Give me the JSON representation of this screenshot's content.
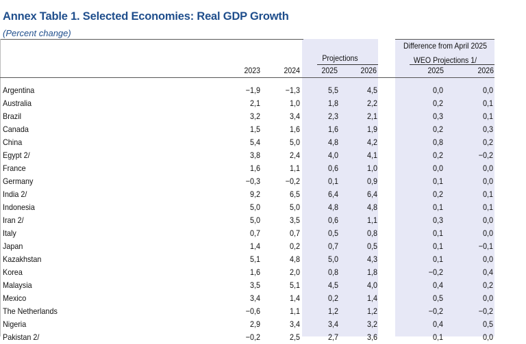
{
  "title": "Annex Table 1. Selected Economies: Real GDP Growth",
  "subtitle": "(Percent change)",
  "header": {
    "projections_label": "Projections",
    "difference_line1": "Difference from April 2025",
    "difference_line2": "WEO Projections 1/",
    "years": [
      "2023",
      "2024",
      "2025",
      "2026",
      "2025",
      "2026"
    ]
  },
  "rows": [
    {
      "name": "Argentina",
      "values": [
        "−1,9",
        "−1,3",
        "5,5",
        "4,5",
        "0,0",
        "0,0"
      ]
    },
    {
      "name": "Australia",
      "values": [
        "2,1",
        "1,0",
        "1,8",
        "2,2",
        "0,2",
        "0,1"
      ]
    },
    {
      "name": "Brazil",
      "values": [
        "3,2",
        "3,4",
        "2,3",
        "2,1",
        "0,3",
        "0,1"
      ]
    },
    {
      "name": "Canada",
      "values": [
        "1,5",
        "1,6",
        "1,6",
        "1,9",
        "0,2",
        "0,3"
      ]
    },
    {
      "name": "China",
      "values": [
        "5,4",
        "5,0",
        "4,8",
        "4,2",
        "0,8",
        "0,2"
      ]
    },
    {
      "name": "Egypt 2/",
      "values": [
        "3,8",
        "2,4",
        "4,0",
        "4,1",
        "0,2",
        "−0,2"
      ]
    },
    {
      "name": "France",
      "values": [
        "1,6",
        "1,1",
        "0,6",
        "1,0",
        "0,0",
        "0,0"
      ]
    },
    {
      "name": "Germany",
      "values": [
        "−0,3",
        "−0,2",
        "0,1",
        "0,9",
        "0,1",
        "0,0"
      ]
    },
    {
      "name": "India 2/",
      "values": [
        "9,2",
        "6,5",
        "6,4",
        "6,4",
        "0,2",
        "0,1"
      ]
    },
    {
      "name": "Indonesia",
      "values": [
        "5,0",
        "5,0",
        "4,8",
        "4,8",
        "0,1",
        "0,1"
      ]
    },
    {
      "name": "Iran 2/",
      "values": [
        "5,0",
        "3,5",
        "0,6",
        "1,1",
        "0,3",
        "0,0"
      ]
    },
    {
      "name": "Italy",
      "values": [
        "0,7",
        "0,7",
        "0,5",
        "0,8",
        "0,1",
        "0,0"
      ]
    },
    {
      "name": "Japan",
      "values": [
        "1,4",
        "0,2",
        "0,7",
        "0,5",
        "0,1",
        "−0,1"
      ]
    },
    {
      "name": "Kazakhstan",
      "values": [
        "5,1",
        "4,8",
        "5,0",
        "4,3",
        "0,1",
        "0,0"
      ]
    },
    {
      "name": "Korea",
      "values": [
        "1,6",
        "2,0",
        "0,8",
        "1,8",
        "−0,2",
        "0,4"
      ]
    },
    {
      "name": "Malaysia",
      "values": [
        "3,5",
        "5,1",
        "4,5",
        "4,0",
        "0,4",
        "0,2"
      ]
    },
    {
      "name": "Mexico",
      "values": [
        "3,4",
        "1,4",
        "0,2",
        "1,4",
        "0,5",
        "0,0"
      ]
    },
    {
      "name": "The Netherlands",
      "values": [
        "−0,6",
        "1,1",
        "1,2",
        "1,2",
        "−0,2",
        "−0,2"
      ]
    },
    {
      "name": "Nigeria",
      "values": [
        "2,9",
        "3,4",
        "3,4",
        "3,2",
        "0,4",
        "0,5"
      ]
    },
    {
      "name": "Pakistan 2/",
      "values": [
        "−0,2",
        "2,5",
        "2,7",
        "3,6",
        "0,1",
        "0,0"
      ]
    }
  ]
}
